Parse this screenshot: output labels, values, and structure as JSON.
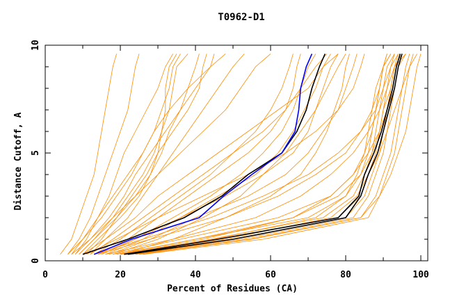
{
  "chart_data": {
    "type": "line",
    "title": "T0962-D1",
    "xlabel": "Percent of Residues (CA)",
    "ylabel": "Distance Cutoff, A",
    "xlim": [
      0,
      102
    ],
    "ylim": [
      0,
      10
    ],
    "x_ticks": [
      "0",
      "20",
      "40",
      "60",
      "80",
      "100"
    ],
    "y_ticks": [
      "0",
      "5",
      "10"
    ],
    "grid": false,
    "colors": {
      "models": "#ff8c00",
      "highlight_black": "#000000",
      "highlight_blue": "#0000ff"
    },
    "cutoffs": [
      0.3,
      1,
      2,
      3,
      4,
      5,
      6,
      7,
      8,
      9,
      9.6
    ],
    "model_series": [
      [
        4,
        7,
        9,
        11,
        13,
        14,
        15,
        16,
        17,
        18,
        19
      ],
      [
        6,
        9,
        12,
        14,
        16,
        18,
        20,
        22,
        23,
        24,
        25
      ],
      [
        8,
        11,
        14,
        17,
        19,
        21,
        24,
        27,
        30,
        32,
        34
      ],
      [
        7,
        10,
        15,
        19,
        23,
        26,
        29,
        31,
        33,
        34,
        36
      ],
      [
        9,
        13,
        18,
        22,
        26,
        29,
        31,
        33,
        34,
        35,
        38
      ],
      [
        10,
        14,
        20,
        25,
        28,
        31,
        33,
        36,
        38,
        40,
        41
      ],
      [
        8,
        12,
        17,
        21,
        24,
        28,
        32,
        36,
        40,
        44,
        45
      ],
      [
        11,
        15,
        19,
        23,
        27,
        30,
        34,
        38,
        41,
        42,
        43
      ],
      [
        6,
        10,
        14,
        18,
        22,
        26,
        29,
        33,
        38,
        44,
        48
      ],
      [
        9,
        13,
        19,
        24,
        28,
        30,
        31,
        32,
        32,
        33,
        35
      ],
      [
        12,
        16,
        22,
        26,
        30,
        34,
        38,
        42,
        46,
        50,
        53
      ],
      [
        7,
        12,
        18,
        24,
        30,
        36,
        42,
        48,
        52,
        56,
        60
      ],
      [
        12,
        18,
        26,
        34,
        42,
        50,
        56,
        60,
        63,
        65,
        66
      ],
      [
        14,
        22,
        30,
        38,
        46,
        54,
        60,
        64,
        66,
        67,
        68
      ],
      [
        15,
        24,
        34,
        44,
        52,
        58,
        63,
        66,
        68,
        70,
        72
      ],
      [
        13,
        20,
        28,
        36,
        44,
        50,
        58,
        64,
        68,
        72,
        75
      ],
      [
        16,
        26,
        36,
        46,
        56,
        62,
        66,
        69,
        72,
        74,
        76
      ],
      [
        10,
        16,
        24,
        30,
        38,
        46,
        54,
        62,
        70,
        74,
        78
      ],
      [
        18,
        30,
        42,
        52,
        58,
        64,
        68,
        72,
        75,
        78,
        80
      ],
      [
        20,
        34,
        48,
        60,
        68,
        72,
        75,
        77,
        79,
        80,
        81
      ],
      [
        17,
        28,
        40,
        54,
        64,
        70,
        74,
        78,
        80,
        82,
        83
      ],
      [
        14,
        24,
        36,
        48,
        58,
        66,
        70,
        72,
        74,
        76,
        78
      ],
      [
        11,
        19,
        30,
        42,
        54,
        64,
        72,
        78,
        82,
        84,
        85
      ],
      [
        18,
        36,
        62,
        76,
        82,
        85,
        87,
        88,
        89,
        90,
        91
      ],
      [
        20,
        40,
        70,
        80,
        84,
        86,
        87,
        88,
        89,
        90,
        92
      ],
      [
        22,
        44,
        74,
        82,
        85,
        87,
        88,
        89,
        90,
        91,
        93
      ],
      [
        21,
        46,
        78,
        84,
        86,
        88,
        89,
        90,
        91,
        92,
        94
      ],
      [
        24,
        50,
        80,
        85,
        87,
        89,
        90,
        91,
        92,
        93,
        95
      ],
      [
        23,
        52,
        82,
        86,
        88,
        90,
        91,
        92,
        93,
        94,
        96
      ],
      [
        25,
        55,
        84,
        88,
        90,
        92,
        93,
        94,
        95,
        96,
        97
      ],
      [
        26,
        58,
        86,
        89,
        91,
        93,
        94,
        95,
        96,
        97,
        98
      ],
      [
        22,
        48,
        76,
        83,
        86,
        89,
        91,
        93,
        95,
        97,
        99
      ],
      [
        24,
        54,
        84,
        89,
        92,
        94,
        96,
        97,
        98,
        99,
        100
      ],
      [
        19,
        40,
        66,
        76,
        82,
        86,
        89,
        91,
        93,
        94,
        95
      ],
      [
        16,
        34,
        56,
        68,
        76,
        82,
        86,
        89,
        91,
        93,
        94
      ],
      [
        21,
        42,
        66,
        78,
        84,
        87,
        89,
        90,
        92,
        93,
        96
      ],
      [
        20,
        45,
        72,
        80,
        83,
        85,
        86,
        87,
        88,
        90,
        91
      ],
      [
        14,
        28,
        48,
        62,
        72,
        80,
        84,
        87,
        89,
        90,
        92
      ],
      [
        13,
        26,
        44,
        58,
        70,
        78,
        84,
        88,
        90,
        92,
        93
      ]
    ],
    "highlight_series": [
      {
        "color": "#000000",
        "values": [
          10,
          22,
          37,
          47,
          54,
          63,
          67,
          69.5,
          71,
          73,
          74.5
        ]
      },
      {
        "color": "#0000ff",
        "values": [
          13,
          23,
          41,
          47.5,
          55,
          63,
          66.5,
          67.5,
          68,
          69.5,
          71
        ]
      },
      {
        "color": "#000000",
        "values": [
          22,
          50,
          80,
          84,
          86,
          88.5,
          90,
          91.5,
          93,
          94,
          95
        ]
      },
      {
        "color": "#000000",
        "values": [
          21,
          46,
          78,
          83.5,
          85,
          87.5,
          89.5,
          91,
          92.5,
          93.5,
          94.5
        ]
      }
    ]
  }
}
